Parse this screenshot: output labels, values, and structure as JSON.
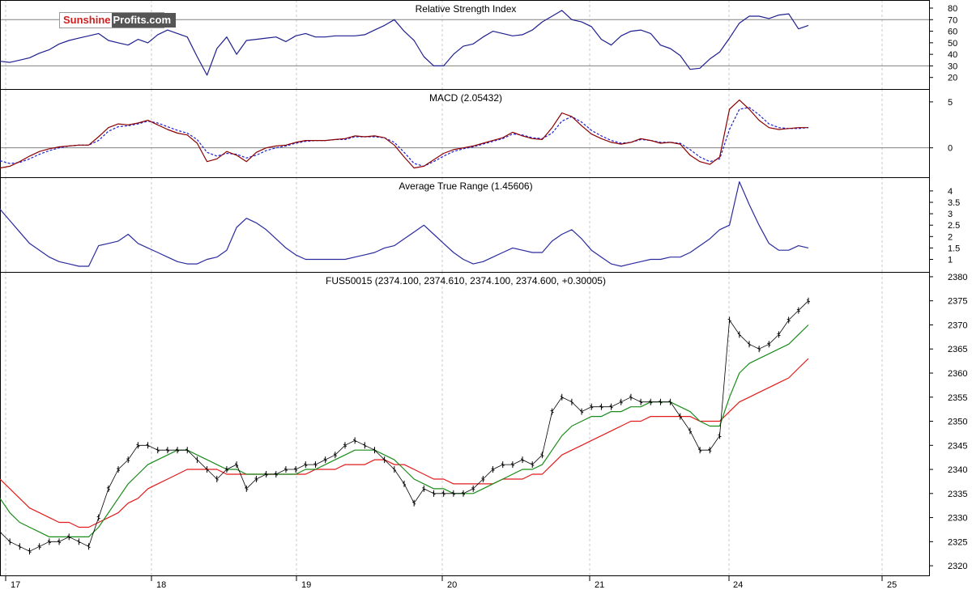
{
  "logo": {
    "part1": "Sunshine",
    "part2": "Profits.com"
  },
  "colors": {
    "price": "#000000",
    "ma_fast": "#1a8c1a",
    "ma_slow": "#e21b1b",
    "macd": "#8b0000",
    "signal": "#1f1fd6",
    "rsi": "#1f1f8f",
    "atr": "#2b2b9f",
    "grid": "#c8c8c8",
    "frame": "#000000"
  },
  "x_axis": {
    "ticks": [
      "17",
      "18",
      "19",
      "20",
      "21",
      "24",
      "25"
    ]
  },
  "chart_data": [
    {
      "type": "line",
      "title": "Relative Strength Index",
      "y_ticks": [
        80,
        70,
        60,
        50,
        40,
        30,
        20
      ],
      "ylim": [
        10,
        87
      ],
      "ref_lines": [
        70,
        30
      ],
      "series": [
        {
          "values": [
            34,
            33,
            35,
            37,
            41,
            44,
            49,
            52,
            54,
            56,
            58,
            52,
            50,
            48,
            53,
            50,
            57,
            61,
            58,
            55,
            38,
            22,
            45,
            55,
            40,
            52,
            53,
            54,
            55,
            51,
            56,
            58,
            55,
            55,
            56,
            56,
            56,
            57,
            61,
            65,
            70,
            60,
            52,
            38,
            30,
            30,
            40,
            47,
            49,
            55,
            60,
            58,
            56,
            57,
            61,
            68,
            73,
            78,
            70,
            68,
            64,
            53,
            48,
            56,
            60,
            61,
            58,
            48,
            45,
            39,
            27,
            28,
            36,
            42,
            54,
            67,
            73,
            73,
            71,
            74,
            75,
            62,
            65
          ]
        }
      ]
    },
    {
      "type": "line",
      "title": "MACD (2.05432)",
      "y_ticks": [
        5,
        0
      ],
      "ylim": [
        -3.2,
        6.4
      ],
      "ref_lines": [
        0
      ],
      "series": [
        {
          "values": [
            -2.2,
            -2.0,
            -1.5,
            -0.9,
            -0.4,
            -0.1,
            0.1,
            0.2,
            0.3,
            0.3,
            1.2,
            2.2,
            2.6,
            2.5,
            2.7,
            3.0,
            2.5,
            2.0,
            1.6,
            1.4,
            0.5,
            -1.5,
            -1.2,
            -0.4,
            -0.8,
            -1.5,
            -0.5,
            0.0,
            0.2,
            0.3,
            0.6,
            0.8,
            0.8,
            0.8,
            0.9,
            1.0,
            1.3,
            1.2,
            1.3,
            1.1,
            0.3,
            -1.0,
            -2.2,
            -2.0,
            -1.3,
            -0.6,
            -0.2,
            0.0,
            0.2,
            0.5,
            0.8,
            1.1,
            1.7,
            1.3,
            1.0,
            0.9,
            2.2,
            3.8,
            3.4,
            2.4,
            1.5,
            1.0,
            0.6,
            0.4,
            0.6,
            1.0,
            0.8,
            0.5,
            0.6,
            0.4,
            -0.8,
            -1.5,
            -1.8,
            -1.0,
            4.2,
            5.2,
            4.2,
            3.0,
            2.2,
            2.0,
            2.1,
            2.2,
            2.2
          ]
        },
        {
          "values": [
            -1.4,
            -1.7,
            -1.6,
            -1.2,
            -0.7,
            -0.3,
            0.0,
            0.2,
            0.3,
            0.3,
            0.8,
            1.8,
            2.3,
            2.4,
            2.6,
            2.9,
            2.7,
            2.3,
            1.9,
            1.6,
            0.9,
            -0.5,
            -0.9,
            -0.6,
            -0.7,
            -1.1,
            -0.8,
            -0.3,
            0.0,
            0.2,
            0.5,
            0.7,
            0.8,
            0.8,
            0.9,
            0.9,
            1.2,
            1.2,
            1.2,
            1.1,
            0.6,
            -0.5,
            -1.7,
            -2.0,
            -1.5,
            -0.9,
            -0.4,
            -0.1,
            0.1,
            0.4,
            0.7,
            1.0,
            1.5,
            1.4,
            1.1,
            1.0,
            1.6,
            2.9,
            3.4,
            2.8,
            1.9,
            1.3,
            0.8,
            0.5,
            0.6,
            0.9,
            0.8,
            0.6,
            0.6,
            0.5,
            -0.2,
            -1.0,
            -1.5,
            -1.2,
            2.0,
            4.2,
            4.4,
            3.6,
            2.6,
            2.2,
            2.1,
            2.1,
            2.2
          ]
        }
      ]
    },
    {
      "type": "line",
      "title": "Average True Range (1.45606)",
      "y_ticks": [
        4.0,
        3.5,
        3.0,
        2.5,
        2.0,
        1.5,
        1.0
      ],
      "ylim": [
        0.45,
        4.6
      ],
      "series": [
        {
          "values": [
            3.2,
            2.7,
            2.2,
            1.7,
            1.4,
            1.1,
            0.9,
            0.8,
            0.7,
            0.7,
            1.6,
            1.7,
            1.8,
            2.1,
            1.7,
            1.5,
            1.3,
            1.1,
            0.9,
            0.8,
            0.8,
            1.0,
            1.1,
            1.4,
            2.4,
            2.8,
            2.6,
            2.3,
            1.9,
            1.5,
            1.2,
            1.0,
            1.0,
            1.0,
            1.0,
            1.0,
            1.1,
            1.2,
            1.3,
            1.5,
            1.6,
            1.9,
            2.2,
            2.5,
            2.1,
            1.7,
            1.3,
            1.0,
            0.8,
            0.9,
            1.1,
            1.3,
            1.5,
            1.4,
            1.3,
            1.3,
            1.8,
            2.1,
            2.3,
            1.9,
            1.4,
            1.1,
            0.8,
            0.7,
            0.8,
            0.9,
            1.0,
            1.0,
            1.1,
            1.1,
            1.3,
            1.6,
            1.9,
            2.3,
            2.5,
            4.4,
            3.4,
            2.5,
            1.7,
            1.4,
            1.4,
            1.6,
            1.5
          ]
        }
      ]
    },
    {
      "type": "line",
      "title": "FUS50015 (2374.100, 2374.610, 2374.100, 2374.600, +0.30005)",
      "y_ticks": [
        2380,
        2375,
        2370,
        2365,
        2360,
        2355,
        2350,
        2345,
        2340,
        2335,
        2330,
        2325,
        2320
      ],
      "ylim": [
        2318,
        2381
      ],
      "series": [
        {
          "values": [
            2327,
            2325,
            2324,
            2323,
            2324,
            2325,
            2325,
            2326,
            2325,
            2324,
            2330,
            2336,
            2340,
            2342,
            2345,
            2345,
            2344,
            2344,
            2344,
            2344,
            2342,
            2340,
            2338,
            2340,
            2341,
            2336,
            2338,
            2339,
            2339,
            2340,
            2340,
            2341,
            2341,
            2342,
            2343,
            2345,
            2346,
            2345,
            2344,
            2342,
            2340,
            2337,
            2333,
            2336,
            2335,
            2335,
            2335,
            2335,
            2336,
            2338,
            2340,
            2341,
            2341,
            2342,
            2341,
            2343,
            2352,
            2355,
            2354,
            2352,
            2353,
            2353,
            2353,
            2354,
            2355,
            2354,
            2354,
            2354,
            2354,
            2351,
            2348,
            2344,
            2344,
            2347,
            2371,
            2368,
            2366,
            2365,
            2366,
            2368,
            2371,
            2373,
            2375
          ]
        },
        {
          "values": [
            2334,
            2331,
            2329,
            2328,
            2327,
            2326,
            2326,
            2326,
            2326,
            2326,
            2328,
            2331,
            2334,
            2337,
            2339,
            2341,
            2342,
            2343,
            2344,
            2344,
            2343,
            2342,
            2341,
            2340,
            2340,
            2339,
            2339,
            2339,
            2339,
            2339,
            2339,
            2340,
            2340,
            2341,
            2342,
            2343,
            2344,
            2344,
            2344,
            2343,
            2342,
            2340,
            2338,
            2337,
            2336,
            2336,
            2335,
            2335,
            2335,
            2336,
            2337,
            2338,
            2339,
            2340,
            2340,
            2341,
            2344,
            2347,
            2349,
            2350,
            2351,
            2351,
            2352,
            2352,
            2353,
            2353,
            2354,
            2354,
            2354,
            2353,
            2352,
            2350,
            2349,
            2349,
            2355,
            2360,
            2362,
            2363,
            2364,
            2365,
            2366,
            2368,
            2370
          ]
        },
        {
          "values": [
            2338,
            2336,
            2334,
            2332,
            2331,
            2330,
            2329,
            2329,
            2328,
            2328,
            2329,
            2330,
            2331,
            2333,
            2334,
            2336,
            2337,
            2338,
            2339,
            2340,
            2340,
            2340,
            2340,
            2339,
            2339,
            2339,
            2339,
            2339,
            2339,
            2339,
            2339,
            2339,
            2340,
            2340,
            2340,
            2341,
            2341,
            2341,
            2342,
            2342,
            2341,
            2341,
            2340,
            2339,
            2338,
            2338,
            2337,
            2337,
            2337,
            2337,
            2337,
            2338,
            2338,
            2338,
            2339,
            2339,
            2341,
            2343,
            2344,
            2345,
            2346,
            2347,
            2348,
            2349,
            2350,
            2350,
            2351,
            2351,
            2351,
            2351,
            2351,
            2350,
            2350,
            2350,
            2352,
            2354,
            2355,
            2356,
            2357,
            2358,
            2359,
            2361,
            2363
          ]
        }
      ]
    }
  ]
}
